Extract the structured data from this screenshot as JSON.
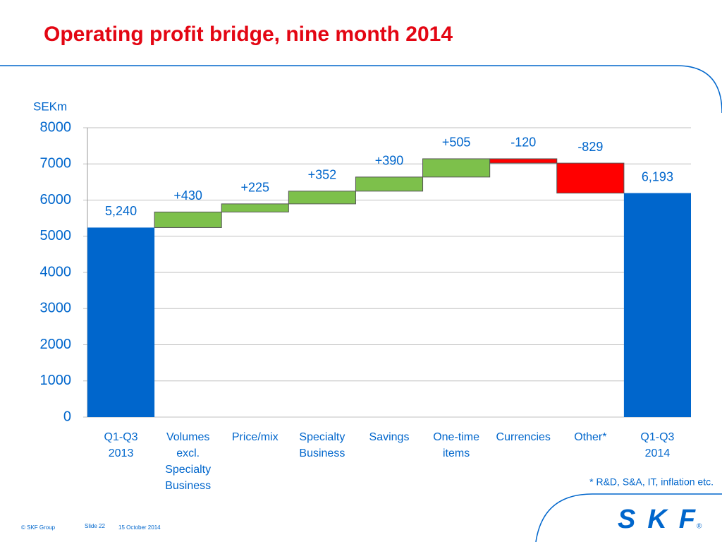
{
  "chart_data": {
    "type": "waterfall",
    "title": "Operating profit bridge, nine month 2014",
    "unit_label": "SEKm",
    "categories": [
      "Q1-Q3 2013",
      "Volumes excl. Specialty Business",
      "Price/mix",
      "Specialty Business",
      "Savings",
      "One-time items",
      "Currencies",
      "Other*",
      "Q1-Q3 2014"
    ],
    "values": [
      5240,
      430,
      225,
      352,
      390,
      505,
      -120,
      -829,
      6193
    ],
    "value_labels": [
      "5,240",
      "+430",
      "+225",
      "+352",
      "+390",
      "+505",
      "-120",
      "-829",
      "6,193"
    ],
    "colors": [
      "#0066cc",
      "#7dc04b",
      "#7dc04b",
      "#7dc04b",
      "#7dc04b",
      "#7dc04b",
      "#ff0000",
      "#ff0000",
      "#0066cc"
    ],
    "ylim": [
      0,
      8000
    ],
    "yticks": [
      0,
      1000,
      2000,
      3000,
      4000,
      5000,
      6000,
      7000,
      8000
    ],
    "grid": true,
    "footnote": "* R&D, S&A, IT, inflation etc."
  },
  "footer": {
    "copyright": "© SKF Group",
    "slide": "Slide 22",
    "date": "15 October 2014",
    "logo": "SKF"
  }
}
